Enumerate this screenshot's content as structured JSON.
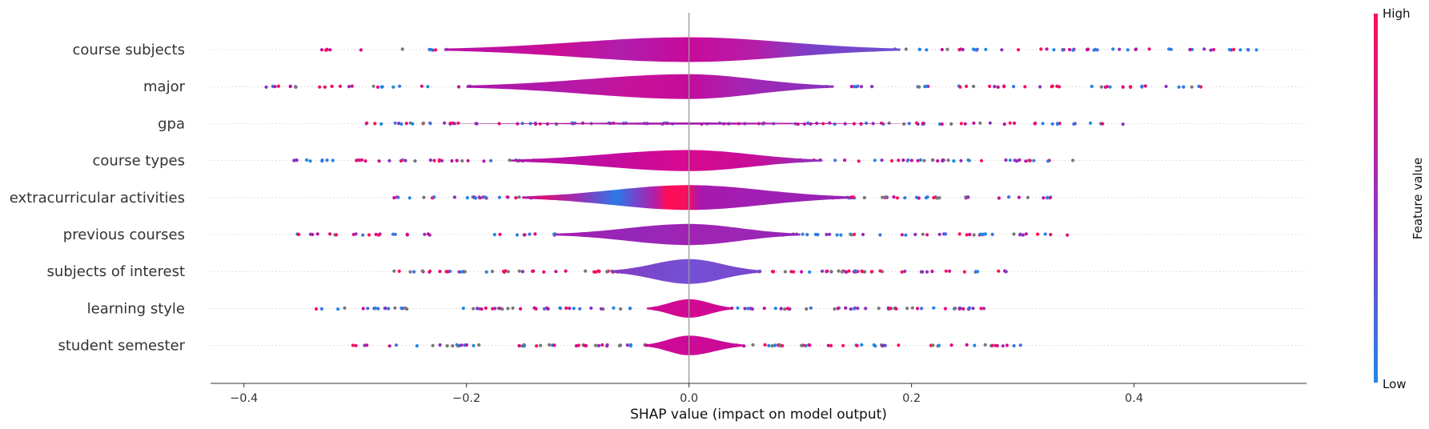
{
  "chart_data": {
    "type": "violin",
    "xlabel": "SHAP value (impact on model output)",
    "xlim": [
      -0.43,
      0.555
    ],
    "x_ticks": [
      {
        "value": -0.4,
        "label": "−0.4"
      },
      {
        "value": -0.2,
        "label": "−0.2"
      },
      {
        "value": 0.0,
        "label": "0.0"
      },
      {
        "value": 0.2,
        "label": "0.2"
      },
      {
        "value": 0.4,
        "label": "0.4"
      }
    ],
    "colorbar": {
      "title": "Feature value",
      "high_label": "High",
      "low_label": "Low",
      "high_color": "#ff0d57",
      "low_color": "#1e88e5"
    },
    "features": [
      {
        "name": "course subjects",
        "range": [
          -0.33,
          0.51
        ],
        "violin_extent": [
          -0.22,
          0.19
        ],
        "max_halfwidth": 0.67,
        "color_stops": [
          [
            -0.22,
            "#b612a8"
          ],
          [
            -0.12,
            "#ca0e96"
          ],
          [
            -0.06,
            "#b01dac"
          ],
          [
            0.0,
            "#c8099b"
          ],
          [
            0.06,
            "#b51ea8"
          ],
          [
            0.11,
            "#7a40c8"
          ],
          [
            0.19,
            "#6f4fd0"
          ]
        ]
      },
      {
        "name": "major",
        "range": [
          -0.38,
          0.46
        ],
        "violin_extent": [
          -0.2,
          0.13
        ],
        "max_halfwidth": 0.67,
        "color_stops": [
          [
            -0.2,
            "#a817ae"
          ],
          [
            -0.1,
            "#b719a6"
          ],
          [
            -0.04,
            "#c81098"
          ],
          [
            0.0,
            "#c40c9c"
          ],
          [
            0.05,
            "#a226b3"
          ],
          [
            0.13,
            "#8533c0"
          ]
        ]
      },
      {
        "name": "gpa",
        "range": [
          -0.29,
          0.39
        ],
        "violin_extent": [
          -0.22,
          0.2
        ],
        "max_halfwidth": 0.06,
        "color_stops": [
          [
            -0.22,
            "#b0169f"
          ],
          [
            0.0,
            "#a622ae"
          ],
          [
            0.2,
            "#c00d9b"
          ]
        ]
      },
      {
        "name": "course types",
        "range": [
          -0.355,
          0.345
        ],
        "violin_extent": [
          -0.16,
          0.12
        ],
        "max_halfwidth": 0.57,
        "color_stops": [
          [
            -0.16,
            "#b313a6"
          ],
          [
            -0.08,
            "#c00ca0"
          ],
          [
            0.0,
            "#d8098f"
          ],
          [
            0.06,
            "#c60e98"
          ],
          [
            0.12,
            "#8a36c0"
          ]
        ]
      },
      {
        "name": "extracurricular activities",
        "range": [
          -0.265,
          0.325
        ],
        "violin_extent": [
          -0.15,
          0.145
        ],
        "max_halfwidth": 0.67,
        "color_stops": [
          [
            -0.15,
            "#a91ba9"
          ],
          [
            -0.13,
            "#d8127a"
          ],
          [
            -0.1,
            "#9a2fb5"
          ],
          [
            -0.065,
            "#2c79e6"
          ],
          [
            -0.05,
            "#6a4cd0"
          ],
          [
            -0.03,
            "#b81ca6"
          ],
          [
            -0.02,
            "#ff0d57"
          ],
          [
            -0.002,
            "#f4105e"
          ],
          [
            0.01,
            "#a818ae"
          ],
          [
            0.06,
            "#a01fb2"
          ],
          [
            0.145,
            "#9524b7"
          ]
        ]
      },
      {
        "name": "previous courses",
        "range": [
          -0.352,
          0.34
        ],
        "violin_extent": [
          -0.12,
          0.1
        ],
        "max_halfwidth": 0.57,
        "color_stops": [
          [
            -0.12,
            "#a71cae"
          ],
          [
            -0.05,
            "#9527b8"
          ],
          [
            0.0,
            "#a024b3"
          ],
          [
            0.05,
            "#9c26b4"
          ],
          [
            0.1,
            "#9223ba"
          ]
        ]
      },
      {
        "name": "subjects of interest",
        "range": [
          -0.265,
          0.285
        ],
        "violin_extent": [
          -0.07,
          0.065
        ],
        "max_halfwidth": 0.67,
        "color_stops": [
          [
            -0.07,
            "#8a35c0"
          ],
          [
            -0.04,
            "#7a46cc"
          ],
          [
            0.0,
            "#7550d4"
          ],
          [
            0.065,
            "#7a46cc"
          ]
        ]
      },
      {
        "name": "learning style",
        "range": [
          -0.335,
          0.265
        ],
        "violin_extent": [
          -0.038,
          0.04
        ],
        "max_halfwidth": 0.5,
        "color_stops": [
          [
            -0.038,
            "#d00a94"
          ],
          [
            0.0,
            "#d20a93"
          ],
          [
            0.04,
            "#d00a94"
          ]
        ]
      },
      {
        "name": "student semester",
        "range": [
          -0.302,
          0.298
        ],
        "violin_extent": [
          -0.04,
          0.05
        ],
        "max_halfwidth": 0.53,
        "color_stops": [
          [
            -0.04,
            "#cc0a97"
          ],
          [
            0.0,
            "#cd0a96"
          ],
          [
            0.05,
            "#c90b98"
          ]
        ]
      }
    ]
  }
}
